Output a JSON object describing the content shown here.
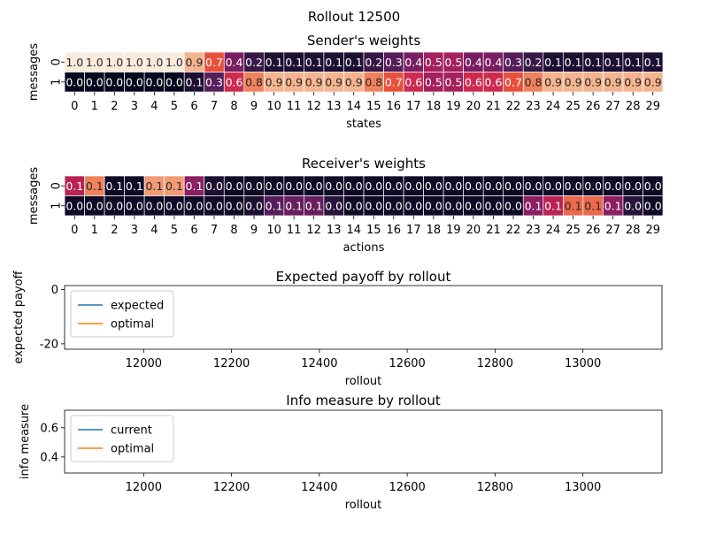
{
  "figure": {
    "suptitle": "Rollout 12500"
  },
  "chart_data": [
    {
      "type": "heatmap",
      "title": "Sender's weights",
      "xlabel": "states",
      "ylabel": "messages",
      "x_ticks": [
        "0",
        "1",
        "2",
        "3",
        "4",
        "5",
        "6",
        "7",
        "8",
        "9",
        "10",
        "11",
        "12",
        "13",
        "14",
        "15",
        "16",
        "17",
        "18",
        "19",
        "20",
        "21",
        "22",
        "23",
        "24",
        "25",
        "26",
        "27",
        "28",
        "29"
      ],
      "y_ticks": [
        "0",
        "1"
      ],
      "values": [
        [
          1.0,
          1.0,
          1.0,
          1.0,
          1.0,
          1.0,
          0.9,
          0.7,
          0.4,
          0.2,
          0.1,
          0.1,
          0.1,
          0.1,
          0.1,
          0.2,
          0.3,
          0.4,
          0.5,
          0.5,
          0.4,
          0.4,
          0.3,
          0.2,
          0.1,
          0.1,
          0.1,
          0.1,
          0.1,
          0.1
        ],
        [
          0.0,
          0.0,
          0.0,
          0.0,
          0.0,
          0.0,
          0.1,
          0.3,
          0.6,
          0.8,
          0.9,
          0.9,
          0.9,
          0.9,
          0.9,
          0.8,
          0.7,
          0.6,
          0.5,
          0.5,
          0.6,
          0.6,
          0.7,
          0.8,
          0.9,
          0.9,
          0.9,
          0.9,
          0.9,
          0.9
        ]
      ],
      "colormap": "rocket",
      "vmin": 0,
      "vmax": 1
    },
    {
      "type": "heatmap",
      "title": "Receiver's weights",
      "xlabel": "actions",
      "ylabel": "messages",
      "x_ticks": [
        "0",
        "1",
        "2",
        "3",
        "4",
        "5",
        "6",
        "7",
        "8",
        "9",
        "10",
        "11",
        "12",
        "13",
        "14",
        "15",
        "16",
        "17",
        "18",
        "19",
        "20",
        "21",
        "22",
        "23",
        "24",
        "25",
        "26",
        "27",
        "28",
        "29"
      ],
      "y_ticks": [
        "0",
        "1"
      ],
      "values": [
        [
          0.1,
          0.1,
          0.1,
          0.1,
          0.1,
          0.1,
          0.1,
          0.0,
          0.0,
          0.0,
          0.0,
          0.0,
          0.0,
          0.0,
          0.0,
          0.0,
          0.0,
          0.0,
          0.0,
          0.0,
          0.0,
          0.0,
          0.0,
          0.0,
          0.0,
          0.0,
          0.0,
          0.0,
          0.0,
          0.0
        ],
        [
          0.0,
          0.0,
          0.0,
          0.0,
          0.0,
          0.0,
          0.0,
          0.0,
          0.0,
          0.0,
          0.1,
          0.1,
          0.1,
          0.0,
          0.0,
          0.0,
          0.0,
          0.0,
          0.0,
          0.0,
          0.0,
          0.0,
          0.0,
          0.1,
          0.1,
          0.1,
          0.1,
          0.1,
          0.0,
          0.0
        ]
      ],
      "shade": [
        [
          0.55,
          0.8,
          0.05,
          0.05,
          0.85,
          0.85,
          0.45,
          0.1,
          0.05,
          0.05,
          0.05,
          0.05,
          0.05,
          0.05,
          0.05,
          0.05,
          0.05,
          0.05,
          0.05,
          0.05,
          0.05,
          0.05,
          0.05,
          0.05,
          0.05,
          0.05,
          0.05,
          0.05,
          0.05,
          0.05
        ],
        [
          0.05,
          0.05,
          0.05,
          0.05,
          0.05,
          0.05,
          0.05,
          0.05,
          0.05,
          0.1,
          0.3,
          0.35,
          0.35,
          0.15,
          0.05,
          0.05,
          0.05,
          0.05,
          0.05,
          0.05,
          0.05,
          0.05,
          0.05,
          0.45,
          0.55,
          0.75,
          0.75,
          0.45,
          0.15,
          0.05
        ]
      ],
      "colormap": "rocket"
    },
    {
      "type": "line",
      "title": "Expected payoff by rollout",
      "xlabel": "rollout",
      "ylabel": "expected payoff",
      "x_ticks": [
        12000,
        12200,
        12400,
        12600,
        12800,
        13000
      ],
      "y_ticks": [
        0,
        -20
      ],
      "xlim": [
        11820,
        13180
      ],
      "ylim": [
        -22,
        1.5
      ],
      "legend": [
        "expected",
        "optimal"
      ],
      "legend_position": "upper left",
      "series": [
        {
          "name": "expected",
          "color": "#1f77b4",
          "x": [],
          "y": []
        },
        {
          "name": "optimal",
          "color": "#ff7f0e",
          "x": [],
          "y": []
        }
      ]
    },
    {
      "type": "line",
      "title": "Info measure by rollout",
      "xlabel": "rollout",
      "ylabel": "info measure",
      "x_ticks": [
        12000,
        12200,
        12400,
        12600,
        12800,
        13000
      ],
      "y_ticks": [
        0.6,
        0.4
      ],
      "xlim": [
        11820,
        13180
      ],
      "ylim": [
        0.29,
        0.72
      ],
      "legend": [
        "current",
        "optimal"
      ],
      "legend_position": "upper left",
      "series": [
        {
          "name": "current",
          "color": "#1f77b4",
          "x": [],
          "y": []
        },
        {
          "name": "optimal",
          "color": "#ff7f0e",
          "x": [],
          "y": []
        }
      ]
    }
  ]
}
